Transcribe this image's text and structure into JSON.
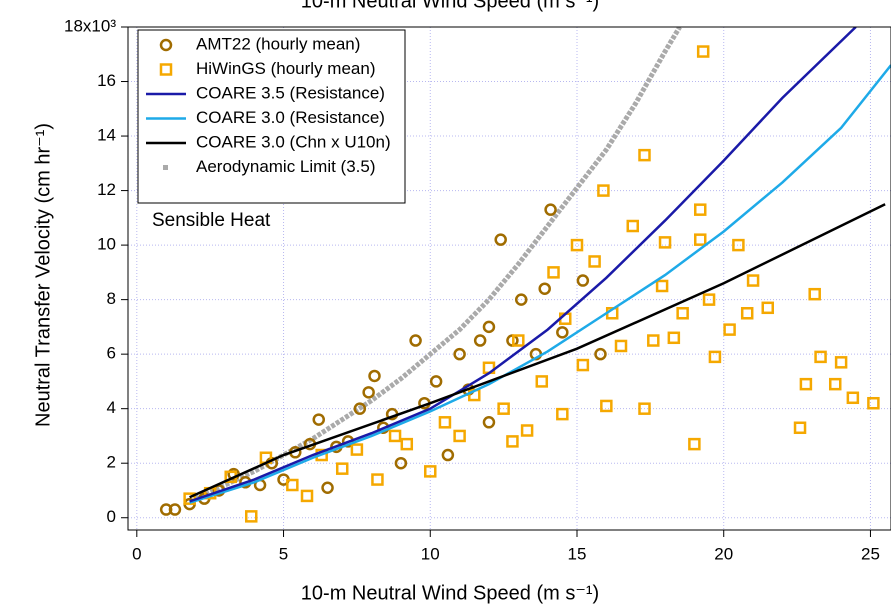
{
  "chart_data": {
    "type": "scatter",
    "top_label": "10-m Neutral Wind Speed (m s⁻¹)",
    "x_label": "10-m Neutral Wind Speed (m s⁻¹)",
    "y_label": "Neutral Transfer Velocity (cm hr⁻¹)",
    "annotation": "Sensible Heat",
    "xlim": [
      -0.3,
      25.7
    ],
    "ylim": [
      -0.45,
      18
    ],
    "xticks": [
      0,
      5,
      10,
      15,
      20,
      25
    ],
    "yticks": [
      0,
      2,
      4,
      6,
      8,
      10,
      12,
      14,
      16,
      {
        "value": 18,
        "label": "18x10³"
      }
    ],
    "grid": true,
    "legend": "top-left",
    "series": [
      {
        "name": "AMT22 (hourly mean)",
        "color": "#a06c00",
        "marker": "circle",
        "x": [
          1,
          1.3,
          1.8,
          2.3,
          2.8,
          3.3,
          3.7,
          4.2,
          4.6,
          5.0,
          5.4,
          5.9,
          6.2,
          6.5,
          6.8,
          7.2,
          7.6,
          7.9,
          8.1,
          8.4,
          8.7,
          9.0,
          9.5,
          9.8,
          10.2,
          10.6,
          11,
          11.3,
          11.7,
          12,
          12.4,
          12.8,
          13.1,
          13.6,
          13.9,
          14.1,
          14.5,
          15.2,
          15.8,
          12.0
        ],
        "values": [
          0.3,
          0.3,
          0.5,
          0.7,
          1.0,
          1.6,
          1.3,
          1.2,
          2.0,
          1.4,
          2.4,
          2.7,
          3.6,
          1.1,
          2.6,
          2.8,
          4.0,
          4.6,
          5.2,
          3.3,
          3.8,
          2.0,
          6.5,
          4.2,
          5.0,
          2.3,
          6.0,
          4.7,
          6.5,
          7.0,
          10.2,
          6.5,
          8.0,
          6.0,
          8.4,
          11.3,
          6.8,
          8.7,
          6.0,
          3.5
        ]
      },
      {
        "name": "HiWinGS (hourly mean)",
        "color": "#f5a800",
        "marker": "square",
        "x": [
          1.8,
          2.5,
          3.2,
          3.9,
          4.4,
          5.3,
          5.8,
          6.3,
          7.0,
          7.5,
          8.2,
          8.8,
          9.2,
          10.0,
          10.5,
          11.0,
          11.5,
          12.0,
          12.5,
          13.0,
          13.3,
          13.8,
          14.2,
          14.6,
          15.0,
          15.2,
          15.6,
          15.9,
          16.2,
          16.5,
          16.9,
          17.3,
          17.6,
          17.9,
          18.3,
          18.6,
          19.0,
          19.2,
          19.3,
          19.5,
          19.7,
          20.2,
          20.8,
          21.0,
          21.5,
          22.6,
          22.8,
          23.1,
          23.3,
          23.8,
          24.0,
          24.4,
          25.1,
          17.3,
          16.0,
          14.5,
          12.8,
          18.0,
          19.2,
          20.5
        ],
        "values": [
          0.7,
          0.9,
          1.5,
          0.05,
          2.2,
          1.2,
          0.8,
          2.3,
          1.8,
          2.5,
          1.4,
          3.0,
          2.7,
          1.7,
          3.5,
          3.0,
          4.5,
          5.5,
          4.0,
          6.5,
          3.2,
          5.0,
          9.0,
          7.3,
          10.0,
          5.6,
          9.4,
          12.0,
          7.5,
          6.3,
          10.7,
          13.3,
          6.5,
          8.5,
          6.6,
          7.5,
          2.7,
          11.3,
          17.1,
          8.0,
          5.9,
          6.9,
          7.5,
          8.7,
          7.7,
          3.3,
          4.9,
          8.2,
          5.9,
          4.9,
          5.7,
          4.4,
          4.2,
          4.0,
          4.1,
          3.8,
          2.8,
          10.1,
          10.2,
          10.0
        ]
      },
      {
        "name": "COARE 3.5 (Resistance)",
        "color": "#1a1aa8",
        "marker": "line",
        "x": [
          1.8,
          4,
          6,
          8,
          10,
          12,
          14,
          16,
          18,
          20,
          22,
          24.5
        ],
        "values": [
          0.6,
          1.4,
          2.3,
          3.1,
          4.0,
          5.3,
          6.9,
          8.8,
          10.9,
          13.1,
          15.4,
          18.0
        ]
      },
      {
        "name": "COARE 3.0 (Resistance)",
        "color": "#1eaae8",
        "marker": "line",
        "x": [
          1.8,
          4,
          6,
          8,
          10,
          12,
          14,
          16,
          18,
          20,
          22,
          24,
          25.7
        ],
        "values": [
          0.55,
          1.3,
          2.2,
          3.0,
          3.9,
          4.9,
          6.1,
          7.5,
          8.9,
          10.5,
          12.3,
          14.3,
          16.6
        ]
      },
      {
        "name": "COARE 3.0 (Chn x U10n)",
        "color": "#000000",
        "marker": "line",
        "x": [
          1.8,
          5,
          10,
          15,
          20,
          25.5
        ],
        "values": [
          0.75,
          2.3,
          4.2,
          6.2,
          8.6,
          11.5
        ]
      },
      {
        "name": "Aerodynamic Limit (3.5)",
        "color": "#aaaaaa",
        "marker": "dots",
        "x": [
          2,
          3,
          4,
          5,
          6,
          7,
          8,
          9,
          10,
          11,
          12,
          13,
          14,
          15,
          16,
          17,
          18,
          18.5
        ],
        "values": [
          0.7,
          1.2,
          1.7,
          2.3,
          2.9,
          3.6,
          4.3,
          5.1,
          6.0,
          6.9,
          8.0,
          9.3,
          10.7,
          12.1,
          13.5,
          15.2,
          17.1,
          18.0
        ]
      }
    ]
  }
}
